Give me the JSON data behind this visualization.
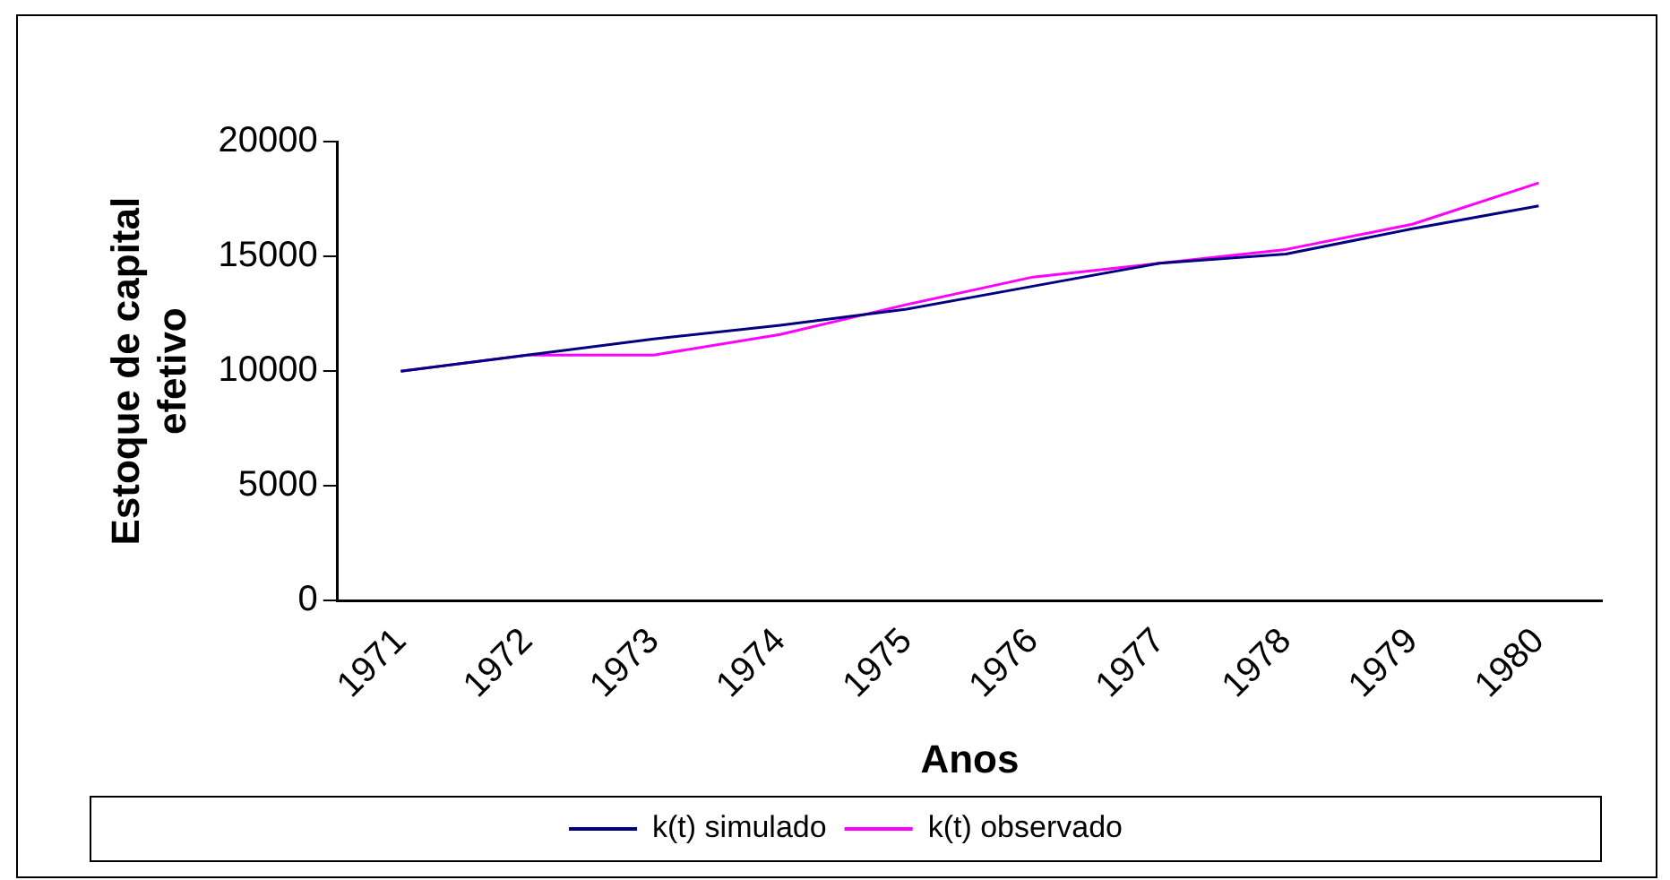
{
  "chart_data": {
    "type": "line",
    "xlabel": "Anos",
    "ylabel": "Estoque de capital efetivo",
    "categories": [
      "1971",
      "1972",
      "1973",
      "1974",
      "1975",
      "1976",
      "1977",
      "1978",
      "1979",
      "1980"
    ],
    "series": [
      {
        "name": "k(t) simulado",
        "color": "#000080",
        "values": [
          10000,
          10700,
          11400,
          12000,
          12700,
          13700,
          14700,
          15100,
          16200,
          17200
        ]
      },
      {
        "name": "k(t) observado",
        "color": "#ff00ff",
        "values": [
          10000,
          10700,
          10700,
          11600,
          12900,
          14100,
          14700,
          15300,
          16400,
          18200
        ]
      }
    ],
    "ylim": [
      0,
      20000
    ],
    "yticks": [
      0,
      5000,
      10000,
      15000,
      20000
    ],
    "grid": false,
    "legend": "bottom",
    "marker": "none",
    "line_style": "solid"
  }
}
